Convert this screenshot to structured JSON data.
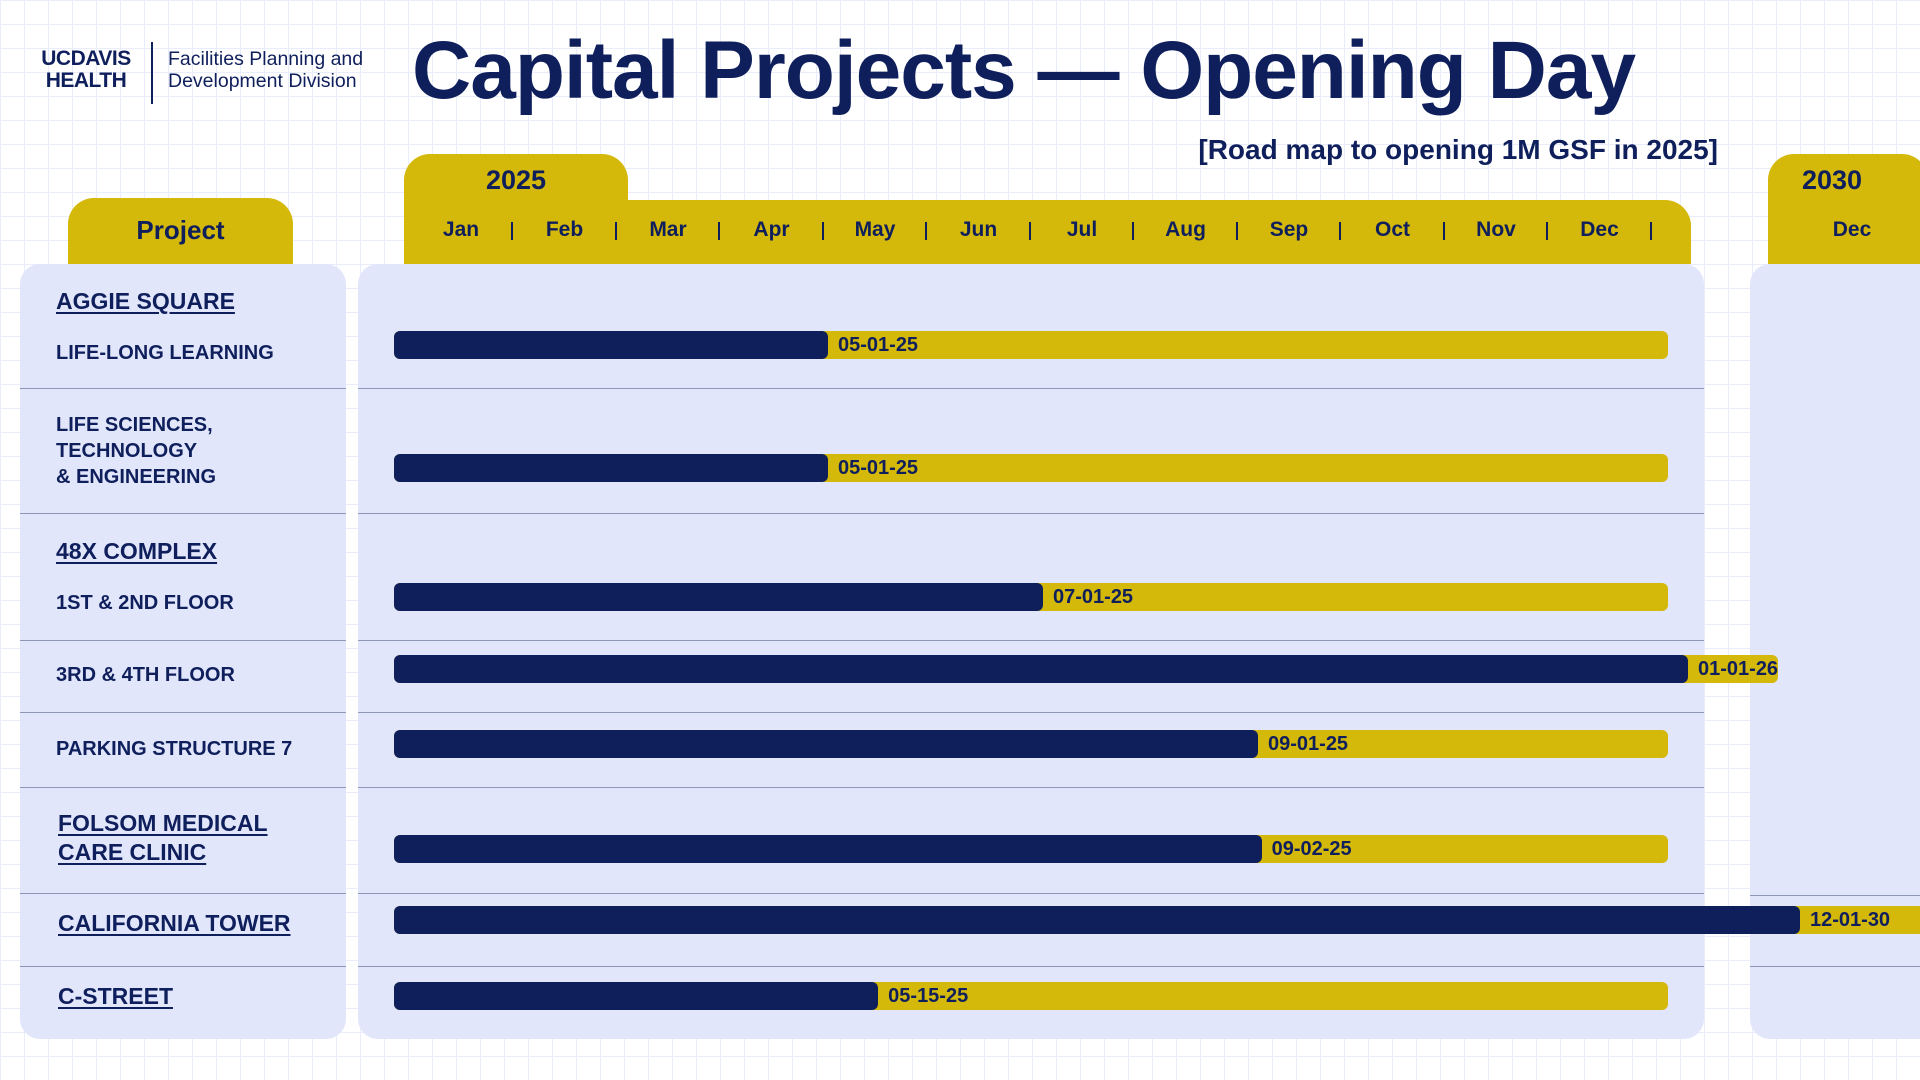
{
  "logo": {
    "line1": "UCDAVIS",
    "line2": "HEALTH",
    "division_line1": "Facilities Planning and",
    "division_line2": "Development Division"
  },
  "title": "Capital Projects — Opening Day",
  "subtitle": "[Road map to opening 1M GSF in 2025]",
  "colors": {
    "navy": "#0f1f5c",
    "gold": "#d4b80a",
    "panel": "#e1e6fb"
  },
  "chart_data": {
    "type": "gantt",
    "column_header": "Project",
    "axis_years": [
      "2025",
      "2030"
    ],
    "axis_months": [
      "Jan",
      "Feb",
      "Mar",
      "Apr",
      "May",
      "Jun",
      "Jul",
      "Aug",
      "Sep",
      "Oct",
      "Nov",
      "Dec"
    ],
    "axis_2030_months": [
      "Dec"
    ],
    "groups": [
      {
        "name": "AGGIE SQUARE",
        "link": true
      },
      {
        "name": "48X COMPLEX",
        "link": true
      }
    ],
    "rows": [
      {
        "project": "LIFE-LONG LEARNING",
        "group": "AGGIE SQUARE",
        "opening_date": "05-01-25",
        "open": "2025-05-01"
      },
      {
        "project": "LIFE SCIENCES, TECHNOLOGY & ENGINEERING",
        "project_lines": [
          "LIFE SCIENCES,",
          "TECHNOLOGY",
          "& ENGINEERING"
        ],
        "group": "AGGIE SQUARE",
        "opening_date": "05-01-25",
        "open": "2025-05-01"
      },
      {
        "project": "1ST & 2ND FLOOR",
        "group": "48X COMPLEX",
        "opening_date": "07-01-25",
        "open": "2025-07-01"
      },
      {
        "project": "3RD & 4TH FLOOR",
        "group": "48X COMPLEX",
        "opening_date": "01-01-26",
        "open": "2026-01-01"
      },
      {
        "project": "PARKING STRUCTURE 7",
        "opening_date": "09-01-25",
        "open": "2025-09-01"
      },
      {
        "project": "FOLSOM MEDICAL CARE CLINIC",
        "project_lines": [
          "FOLSOM MEDICAL",
          "CARE CLINIC"
        ],
        "link": true,
        "opening_date": "09-02-25",
        "open": "2025-09-02"
      },
      {
        "project": "CALIFORNIA TOWER",
        "link": true,
        "opening_date": "12-01-30",
        "open": "2030-12-01"
      },
      {
        "project": "C-STREET",
        "link": true,
        "opening_date": "05-15-25",
        "open": "2025-05-15"
      }
    ]
  }
}
